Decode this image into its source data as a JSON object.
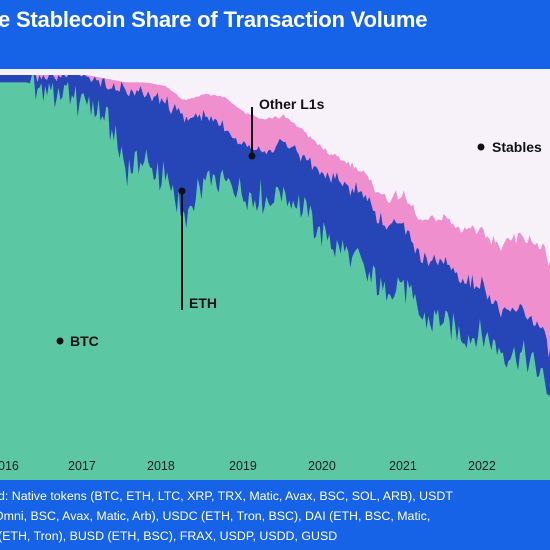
{
  "title": "e Stablecoin Share of Transaction Volume",
  "colors": {
    "background": "#1763e8",
    "plot_bg": "#f7f1fa",
    "btc": "#5bc8a3",
    "eth": "#2646b8",
    "other_l1s": "#ef8fcd",
    "stablecoins": "#f7f1fa",
    "annotation": "#111111"
  },
  "chart_data": {
    "type": "area",
    "stacked": true,
    "normalized": true,
    "x_ticks": [
      "016",
      "2017",
      "2018",
      "2019",
      "2020",
      "2021",
      "2022"
    ],
    "x_range": [
      "2015-09",
      "2022-12"
    ],
    "y_range": [
      0,
      1
    ],
    "grid": false,
    "legend": "inline labels",
    "dates": [
      "2015-12",
      "2016-03",
      "2016-06",
      "2016-09",
      "2016-12",
      "2017-03",
      "2017-06",
      "2017-09",
      "2017-12",
      "2018-03",
      "2018-06",
      "2018-09",
      "2018-12",
      "2019-03",
      "2019-06",
      "2019-09",
      "2019-12",
      "2020-03",
      "2020-06",
      "2020-09",
      "2020-12",
      "2021-03",
      "2021-06",
      "2021-09",
      "2021-12",
      "2022-03",
      "2022-06",
      "2022-09",
      "2022-12"
    ],
    "series": [
      {
        "name": "BTC",
        "values": [
          0.98,
          0.98,
          0.96,
          0.95,
          0.93,
          0.9,
          0.76,
          0.77,
          0.72,
          0.62,
          0.7,
          0.72,
          0.68,
          0.67,
          0.69,
          0.64,
          0.57,
          0.53,
          0.48,
          0.42,
          0.44,
          0.35,
          0.34,
          0.3,
          0.3,
          0.26,
          0.25,
          0.2,
          0.1
        ]
      },
      {
        "name": "ETH",
        "values": [
          0.02,
          0.02,
          0.04,
          0.05,
          0.07,
          0.08,
          0.2,
          0.18,
          0.21,
          0.26,
          0.19,
          0.14,
          0.14,
          0.13,
          0.13,
          0.14,
          0.16,
          0.18,
          0.2,
          0.18,
          0.16,
          0.15,
          0.16,
          0.15,
          0.14,
          0.1,
          0.12,
          0.12,
          0.1
        ]
      },
      {
        "name": "Other L1s",
        "values": [
          0,
          0,
          0,
          0,
          0,
          0.01,
          0.02,
          0.03,
          0.04,
          0.05,
          0.06,
          0.08,
          0.08,
          0.08,
          0.07,
          0.07,
          0.07,
          0.06,
          0.06,
          0.07,
          0.08,
          0.1,
          0.12,
          0.14,
          0.15,
          0.18,
          0.2,
          0.22,
          0.25
        ]
      },
      {
        "name": "Stables",
        "values": [
          0,
          0,
          0,
          0,
          0,
          0.01,
          0.02,
          0.02,
          0.03,
          0.07,
          0.05,
          0.06,
          0.1,
          0.12,
          0.11,
          0.15,
          0.2,
          0.23,
          0.26,
          0.33,
          0.32,
          0.4,
          0.38,
          0.41,
          0.41,
          0.46,
          0.43,
          0.46,
          0.55
        ]
      }
    ],
    "annotations": [
      {
        "label": "BTC",
        "series": "BTC"
      },
      {
        "label": "ETH",
        "series": "ETH"
      },
      {
        "label": "Other L1s",
        "series": "Other L1s"
      },
      {
        "label": "Stables",
        "series": "Stables"
      }
    ]
  },
  "footer_lines": [
    "d: Native tokens (BTC, ETH, LTC, XRP, TRX, Matic, Avax, BSC, SOL, ARB), USDT",
    "Omni, BSC, Avax, Matic, Arb), USDC (ETH, Tron, BSC), DAI (ETH, BSC, Matic,",
    "(ETH, Tron), BUSD (ETH, BSC), FRAX, USDP, USDD, GUSD"
  ]
}
